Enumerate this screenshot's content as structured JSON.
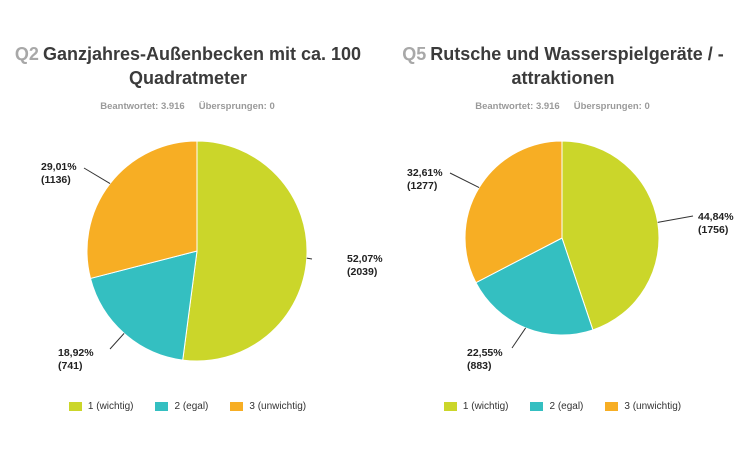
{
  "chart_data": [
    {
      "type": "pie",
      "qnum": "Q2",
      "title": "Ganzjahres-Außenbecken mit ca. 100 Quadratmeter",
      "title_lines": [
        "Ganzjahres-Außenbecken mit ca. 100",
        "Quadratmeter"
      ],
      "answered": "Beantwortet: 3.916",
      "skipped": "Übersprungen: 0",
      "slices": [
        {
          "name": "1 (wichtig)",
          "percent": 52.07,
          "count": 2039,
          "pct_label": "52,07%",
          "count_label": "(2039)",
          "color": "#cbd62a"
        },
        {
          "name": "2 (egal)",
          "percent": 18.92,
          "count": 741,
          "pct_label": "18,92%",
          "count_label": "(741)",
          "color": "#34bfc1"
        },
        {
          "name": "3 (unwichtig)",
          "percent": 29.01,
          "count": 1136,
          "pct_label": "29,01%",
          "count_label": "(1136)",
          "color": "#f7ae24"
        }
      ],
      "legend_position": "bottom"
    },
    {
      "type": "pie",
      "qnum": "Q5",
      "title": "Rutsche und Wasserspielgeräte / -attraktionen",
      "title_lines": [
        "Rutsche und Wasserspielgeräte / -",
        "attraktionen"
      ],
      "answered": "Beantwortet: 3.916",
      "skipped": "Übersprungen: 0",
      "slices": [
        {
          "name": "1 (wichtig)",
          "percent": 44.84,
          "count": 1756,
          "pct_label": "44,84%",
          "count_label": "(1756)",
          "color": "#cbd62a"
        },
        {
          "name": "2 (egal)",
          "percent": 22.55,
          "count": 883,
          "pct_label": "22,55%",
          "count_label": "(883)",
          "color": "#34bfc1"
        },
        {
          "name": "3 (unwichtig)",
          "percent": 32.61,
          "count": 1277,
          "pct_label": "32,61%",
          "count_label": "(1277)",
          "color": "#f7ae24"
        }
      ],
      "legend_position": "bottom"
    }
  ]
}
